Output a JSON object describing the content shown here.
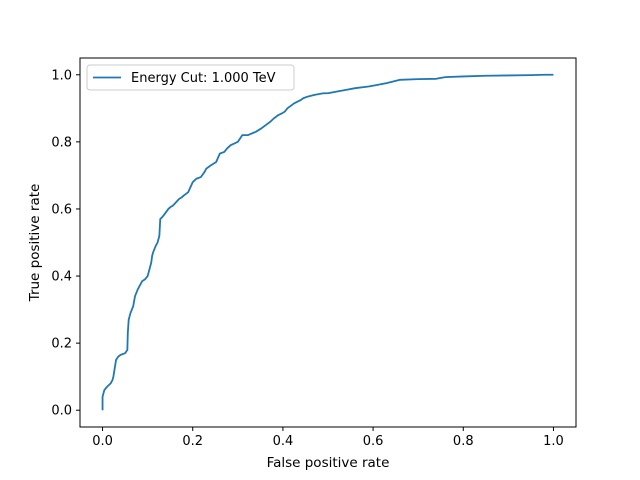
{
  "chart_data": {
    "type": "line",
    "title": "",
    "xlabel": "False positive rate",
    "ylabel": "True positive rate",
    "xlim": [
      -0.05,
      1.05
    ],
    "ylim": [
      -0.05,
      1.05
    ],
    "x_ticks": [
      0.0,
      0.2,
      0.4,
      0.6,
      0.8,
      1.0
    ],
    "x_tick_labels": [
      "0.0",
      "0.2",
      "0.4",
      "0.6",
      "0.8",
      "1.0"
    ],
    "y_ticks": [
      0.0,
      0.2,
      0.4,
      0.6,
      0.8,
      1.0
    ],
    "y_tick_labels": [
      "0.0",
      "0.2",
      "0.4",
      "0.6",
      "0.8",
      "1.0"
    ],
    "grid": false,
    "legend_position": "upper-left",
    "series": [
      {
        "name": "Energy Cut: 1.000 TeV",
        "color": "#1f77b4",
        "x": [
          0.0,
          0.0,
          0.002,
          0.004,
          0.01,
          0.018,
          0.022,
          0.024,
          0.03,
          0.035,
          0.04,
          0.05,
          0.055,
          0.056,
          0.058,
          0.06,
          0.062,
          0.068,
          0.072,
          0.078,
          0.082,
          0.088,
          0.094,
          0.1,
          0.104,
          0.108,
          0.11,
          0.112,
          0.118,
          0.122,
          0.126,
          0.128,
          0.132,
          0.135,
          0.146,
          0.15,
          0.156,
          0.17,
          0.176,
          0.18,
          0.19,
          0.2,
          0.204,
          0.208,
          0.218,
          0.226,
          0.23,
          0.24,
          0.252,
          0.26,
          0.27,
          0.276,
          0.284,
          0.292,
          0.3,
          0.31,
          0.322,
          0.34,
          0.352,
          0.362,
          0.372,
          0.38,
          0.39,
          0.398,
          0.404,
          0.41,
          0.425,
          0.44,
          0.445,
          0.455,
          0.47,
          0.49,
          0.5,
          0.52,
          0.54,
          0.56,
          0.59,
          0.61,
          0.63,
          0.66,
          0.7,
          0.74,
          0.76,
          0.8,
          0.85,
          0.9,
          0.95,
          0.98,
          1.0
        ],
        "y": [
          0.0,
          0.04,
          0.05,
          0.06,
          0.07,
          0.08,
          0.09,
          0.1,
          0.15,
          0.16,
          0.165,
          0.17,
          0.18,
          0.23,
          0.27,
          0.28,
          0.29,
          0.31,
          0.34,
          0.36,
          0.37,
          0.385,
          0.39,
          0.4,
          0.42,
          0.44,
          0.46,
          0.47,
          0.49,
          0.5,
          0.52,
          0.57,
          0.575,
          0.58,
          0.6,
          0.605,
          0.61,
          0.63,
          0.635,
          0.64,
          0.65,
          0.68,
          0.685,
          0.69,
          0.695,
          0.71,
          0.72,
          0.73,
          0.74,
          0.765,
          0.77,
          0.78,
          0.79,
          0.795,
          0.8,
          0.82,
          0.82,
          0.83,
          0.84,
          0.85,
          0.86,
          0.87,
          0.88,
          0.885,
          0.89,
          0.9,
          0.915,
          0.925,
          0.93,
          0.935,
          0.94,
          0.945,
          0.945,
          0.95,
          0.955,
          0.96,
          0.965,
          0.97,
          0.975,
          0.985,
          0.987,
          0.988,
          0.993,
          0.995,
          0.997,
          0.998,
          0.999,
          1.0,
          1.0
        ]
      }
    ]
  }
}
